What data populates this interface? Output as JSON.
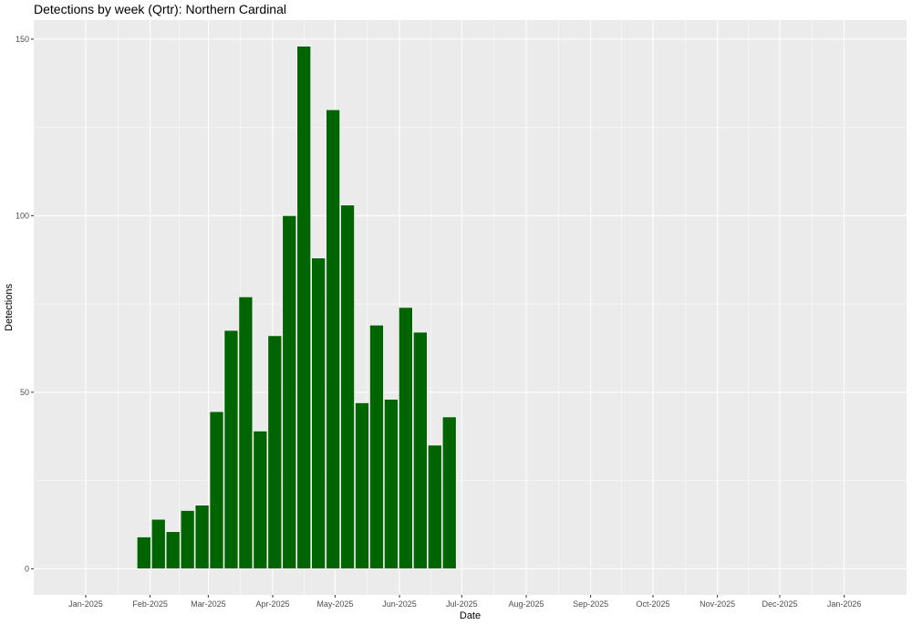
{
  "chart_data": {
    "type": "bar",
    "title": "Detections by week (Qrtr): Northern Cardinal",
    "xlabel": "Date",
    "ylabel": "Detections",
    "x_axis": "date",
    "xlim": [
      "2024-12-07",
      "2026-01-31"
    ],
    "ylim": [
      -7.4,
      155.4
    ],
    "y_ticks": [
      0,
      50,
      100,
      150
    ],
    "x_ticks": [
      {
        "date": "2025-01-01",
        "label": "Jan-2025"
      },
      {
        "date": "2025-02-01",
        "label": "Feb-2025"
      },
      {
        "date": "2025-03-01",
        "label": "Mar-2025"
      },
      {
        "date": "2025-04-01",
        "label": "Apr-2025"
      },
      {
        "date": "2025-05-01",
        "label": "May-2025"
      },
      {
        "date": "2025-06-01",
        "label": "Jun-2025"
      },
      {
        "date": "2025-07-01",
        "label": "Jul-2025"
      },
      {
        "date": "2025-08-01",
        "label": "Aug-2025"
      },
      {
        "date": "2025-09-01",
        "label": "Sep-2025"
      },
      {
        "date": "2025-10-01",
        "label": "Oct-2025"
      },
      {
        "date": "2025-11-01",
        "label": "Nov-2025"
      },
      {
        "date": "2025-12-01",
        "label": "Dec-2025"
      },
      {
        "date": "2026-01-01",
        "label": "Jan-2026"
      }
    ],
    "bar_color": "#006400",
    "bar_width_days": 7,
    "grid": true,
    "panel_background": "#ebebeb",
    "series": [
      {
        "x": [
          "2025-01-29",
          "2025-02-05",
          "2025-02-12",
          "2025-02-19",
          "2025-02-26",
          "2025-03-05",
          "2025-03-12",
          "2025-03-19",
          "2025-03-26",
          "2025-04-02",
          "2025-04-09",
          "2025-04-16",
          "2025-04-23",
          "2025-04-30",
          "2025-05-07",
          "2025-05-14",
          "2025-05-21",
          "2025-05-28",
          "2025-06-04",
          "2025-06-11",
          "2025-06-18",
          "2025-06-25"
        ],
        "values": [
          9,
          14,
          10.5,
          16.5,
          18,
          44.5,
          67.5,
          77,
          39,
          66,
          100,
          148,
          88,
          130,
          103,
          47,
          69,
          48,
          74,
          67,
          35,
          43
        ]
      }
    ]
  }
}
